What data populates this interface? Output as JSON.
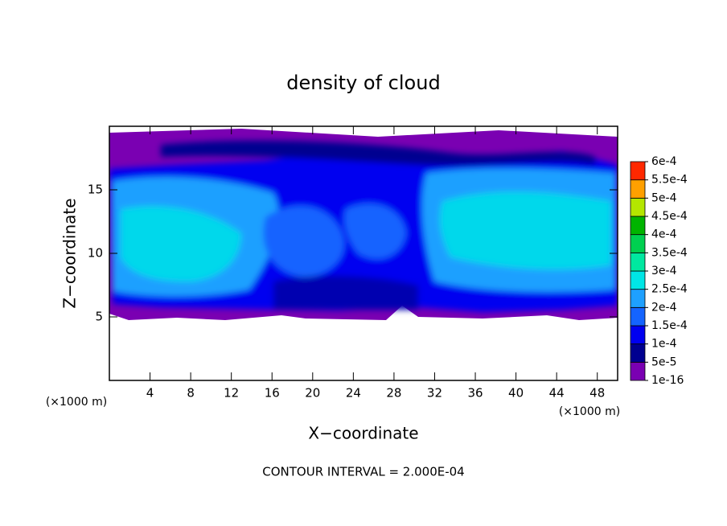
{
  "chart_data": {
    "type": "contour",
    "title": "density of cloud",
    "x_label": "X−coordinate",
    "y_label": "Z−coordinate",
    "x_unit": "(×1000 m)",
    "y_unit": "(×1000 m)",
    "footer": "CONTOUR INTERVAL = 2.000E-04",
    "xlim": [
      0,
      50
    ],
    "ylim": [
      0,
      20
    ],
    "xticks": [
      4,
      8,
      12,
      16,
      20,
      24,
      28,
      32,
      36,
      40,
      44,
      48
    ],
    "yticks": [
      5,
      10,
      15
    ],
    "colorbar_ticks": [
      {
        "value": 1e-16,
        "label": "1e-16"
      },
      {
        "value": 5e-05,
        "label": "5e-5"
      },
      {
        "value": 0.0001,
        "label": "1e-4"
      },
      {
        "value": 0.00015,
        "label": "1.5e-4"
      },
      {
        "value": 0.0002,
        "label": "2e-4"
      },
      {
        "value": 0.00025,
        "label": "2.5e-4"
      },
      {
        "value": 0.0003,
        "label": "3e-4"
      },
      {
        "value": 0.00035,
        "label": "3.5e-4"
      },
      {
        "value": 0.0004,
        "label": "4e-4"
      },
      {
        "value": 0.00045,
        "label": "4.5e-4"
      },
      {
        "value": 0.0005,
        "label": "5e-4"
      },
      {
        "value": 0.00055,
        "label": "5.5e-4"
      },
      {
        "value": 0.0006,
        "label": "6e-4"
      }
    ],
    "colorbar_colors": [
      "#7a00b2",
      "#000090",
      "#0000f0",
      "#1464ff",
      "#1ea0ff",
      "#00e6e6",
      "#00e8a0",
      "#00d050",
      "#00b400",
      "#b4e600",
      "#ffa000",
      "#ff2800"
    ]
  }
}
